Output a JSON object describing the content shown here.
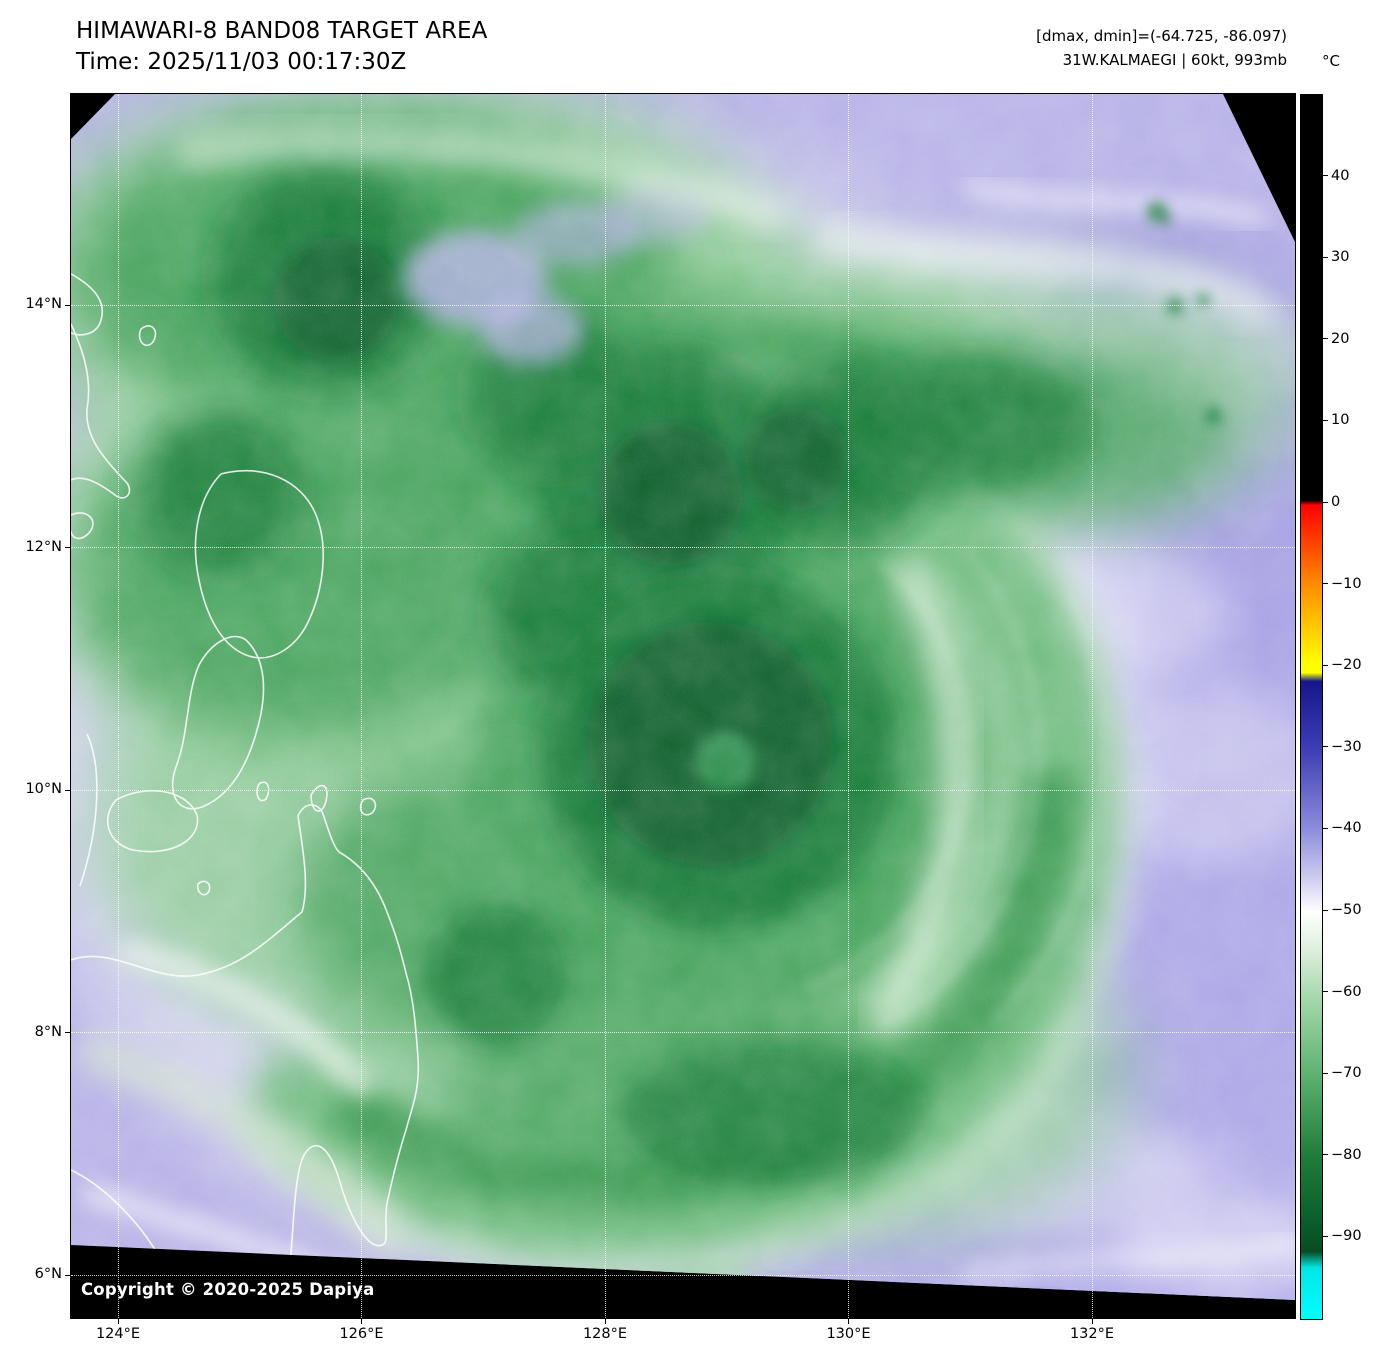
{
  "figure": {
    "title": "HIMAWARI-8 BAND08 TARGET AREA",
    "subtitle": "Time: 2025/11/03 00:17:30Z",
    "readout_line1": "[dmax, dmin]=(-64.725, -86.097)",
    "readout_line2": "31W.KALMAEGI | 60kt, 993mb",
    "copyright": "Copyright © 2020-2025 Dapiya"
  },
  "axes": {
    "x_ticks": [
      {
        "label": "124°E",
        "lon": 124
      },
      {
        "label": "126°E",
        "lon": 126
      },
      {
        "label": "128°E",
        "lon": 128
      },
      {
        "label": "130°E",
        "lon": 130
      },
      {
        "label": "132°E",
        "lon": 132
      }
    ],
    "y_ticks": [
      {
        "label": "6°N",
        "lat": 6
      },
      {
        "label": "8°N",
        "lat": 8
      },
      {
        "label": "10°N",
        "lat": 10
      },
      {
        "label": "12°N",
        "lat": 12
      },
      {
        "label": "14°N",
        "lat": 14
      }
    ],
    "grid_lons": [
      124,
      126,
      128,
      130,
      132
    ],
    "grid_lats": [
      6,
      8,
      10,
      12,
      14
    ]
  },
  "colorbar": {
    "unit_label": "°C",
    "domain_top_c": 50,
    "domain_bottom_c": -100,
    "ticks": [
      {
        "label": "40",
        "value": 40
      },
      {
        "label": "30",
        "value": 30
      },
      {
        "label": "20",
        "value": 20
      },
      {
        "label": "10",
        "value": 10
      },
      {
        "label": "0",
        "value": 0
      },
      {
        "label": "−10",
        "value": -10
      },
      {
        "label": "−20",
        "value": -20
      },
      {
        "label": "−30",
        "value": -30
      },
      {
        "label": "−40",
        "value": -40
      },
      {
        "label": "−50",
        "value": -50
      },
      {
        "label": "−60",
        "value": -60
      },
      {
        "label": "−70",
        "value": -70
      },
      {
        "label": "−80",
        "value": -80
      },
      {
        "label": "−90",
        "value": -90
      }
    ],
    "gradient_stops": [
      [
        "#000000",
        0.0
      ],
      [
        "#000000",
        0.331
      ],
      [
        "#ff0000",
        0.335
      ],
      [
        "#ff8c00",
        0.4
      ],
      [
        "#ffff00",
        0.465
      ],
      [
        "#ffff00",
        0.472
      ],
      [
        "#16168c",
        0.479
      ],
      [
        "#3c3cb4",
        0.533
      ],
      [
        "#8d8ddd",
        0.6
      ],
      [
        "#cfccf0",
        0.64
      ],
      [
        "#ffffff",
        0.667
      ],
      [
        "#dceedd",
        0.7
      ],
      [
        "#aadcaf",
        0.733
      ],
      [
        "#5fb26f",
        0.8
      ],
      [
        "#1e7d38",
        0.867
      ],
      [
        "#0b5e2b",
        0.92
      ],
      [
        "#064d22",
        0.945
      ],
      [
        "#00e6e6",
        0.958
      ],
      [
        "#00ffff",
        1.0
      ]
    ]
  },
  "palette": {
    "dry_air_lavender": "#b6b1e6",
    "deep_dry_purple": "#a49ee3",
    "cloud_green_light": "#90cc98",
    "cloud_green_mid": "#47a35d",
    "cloud_green_dark": "#157c38",
    "cloud_green_core": "#0a5e29",
    "cloud_white": "#ffffff"
  }
}
